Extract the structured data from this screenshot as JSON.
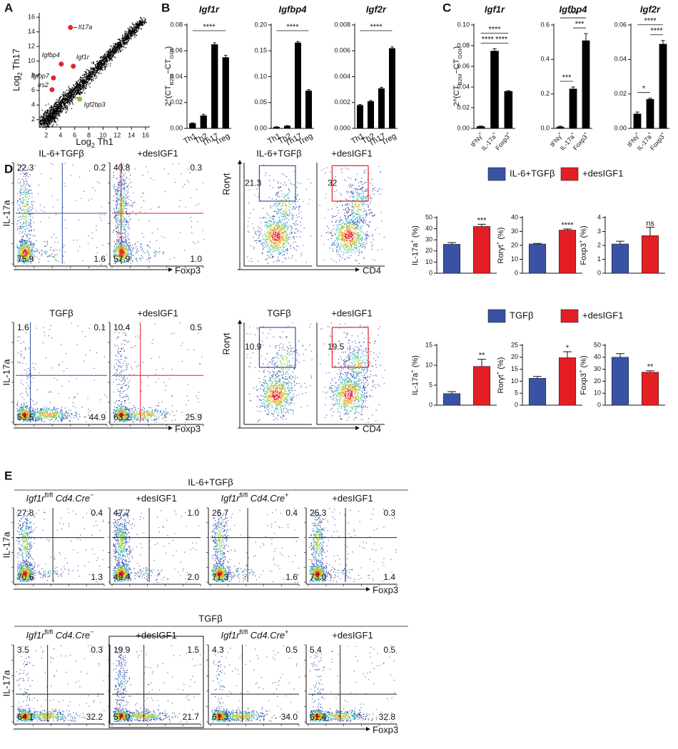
{
  "panel_labels": {
    "A": "A",
    "B": "B",
    "C": "C",
    "D": "D",
    "E": "E"
  },
  "A": {
    "xlabel": [
      "Log",
      "2",
      " Th1"
    ],
    "ylabel": [
      "Log",
      "2",
      " Th17"
    ],
    "xlim": [
      1,
      16.6
    ],
    "ylim": [
      1,
      16.6
    ],
    "xticks": [
      2,
      4,
      6,
      8,
      10,
      12,
      14,
      16
    ],
    "yticks": [
      2,
      4,
      6,
      8,
      10,
      12,
      14,
      16
    ],
    "genes": [
      {
        "name": "Il17a",
        "x": 5.4,
        "y": 14.6,
        "color": "#e3262b"
      },
      {
        "name": "Igfbp4",
        "x": 4.1,
        "y": 9.6,
        "color": "#e3262b"
      },
      {
        "name": "Igf1r",
        "x": 5.8,
        "y": 9.3,
        "color": "#e3262b"
      },
      {
        "name": "Igfbp7",
        "x": 3.0,
        "y": 7.7,
        "color": "#e3262b"
      },
      {
        "name": "Irs2",
        "x": 2.8,
        "y": 6.1,
        "color": "#e3262b"
      },
      {
        "name": "Igf2bp3",
        "x": 6.7,
        "y": 4.8,
        "color": "#7ac143"
      }
    ]
  },
  "B": {
    "ylabel": [
      "2^(CT",
      "B2M",
      "−CT",
      "GOI",
      ")"
    ],
    "charts": [
      {
        "title": "Igf1r",
        "categories": [
          "Th1",
          "Th2",
          "Th17",
          "Treg"
        ],
        "values": [
          0.004,
          0.01,
          0.065,
          0.055
        ],
        "errors": [
          0.0003,
          0.0009,
          0.0012,
          0.0015
        ],
        "ylim": [
          0,
          0.08
        ],
        "yticks": [
          {
            "value": 0,
            "label": "0.00"
          },
          0.02,
          0.04,
          0.06,
          0.08
        ],
        "significance": [
          "****"
        ]
      },
      {
        "title": "Igfbp4",
        "categories": [
          "Th1",
          "Th2",
          "Th17",
          "Treg"
        ],
        "values": [
          0.003,
          0.005,
          0.166,
          0.073
        ],
        "errors": [
          0.0003,
          0.0004,
          0.002,
          0.002
        ],
        "ylim": [
          0,
          0.2
        ],
        "yticks": [
          {
            "value": 0,
            "label": "0.00"
          },
          0.05,
          {
            "value": 0.1,
            "label": "0.10"
          },
          0.15,
          {
            "value": 0.2,
            "label": "0.20"
          }
        ],
        "significance": [
          "****"
        ]
      },
      {
        "title": "Igf2r",
        "categories": [
          "Th1",
          "Th2",
          "Th17",
          "Treg"
        ],
        "values": [
          0.0018,
          0.0021,
          0.0031,
          0.0062
        ],
        "errors": [
          5e-05,
          6e-05,
          8e-05,
          0.0001
        ],
        "ylim": [
          0,
          0.008
        ],
        "yticks": [
          {
            "value": 0,
            "label": "0.000"
          },
          0.002,
          0.004,
          0.006,
          0.008
        ],
        "significance": [
          "****"
        ]
      }
    ]
  },
  "C": {
    "ylabel": [
      "2^(CT",
      "B2M",
      "−CT",
      "GOI",
      ")"
    ],
    "charts": [
      {
        "title": "Igf1r",
        "categories": [
          [
            "IFNγ",
            "+"
          ],
          [
            "IL-17a",
            "+"
          ],
          [
            "Foxp3",
            "+"
          ]
        ],
        "values": [
          0.002,
          0.075,
          0.036
        ],
        "errors": [
          0.0003,
          0.002,
          0.0005
        ],
        "ylim": [
          0,
          0.1
        ],
        "yticks": [
          {
            "value": 0,
            "label": "0.00"
          },
          0.02,
          0.04,
          0.06,
          0.08,
          {
            "value": 0.1,
            "label": "0.10"
          }
        ],
        "significance": [
          "****",
          "****",
          "****"
        ]
      },
      {
        "title": "Igfbp4",
        "categories": [
          [
            "IFNγ",
            "+"
          ],
          [
            "IL-17a",
            "+"
          ],
          [
            "Foxp3",
            "+"
          ]
        ],
        "values": [
          0.01,
          0.23,
          0.51
        ],
        "errors": [
          0.003,
          0.01,
          0.04
        ],
        "ylim": [
          0,
          0.6
        ],
        "yticks": [
          {
            "value": 0,
            "label": "0.0"
          },
          0.2,
          0.4,
          0.6
        ],
        "significance": [
          "***",
          "***",
          "***"
        ]
      },
      {
        "title": "Igf2r",
        "categories": [
          [
            "IFNγ",
            "+"
          ],
          [
            "IL-17a",
            "+"
          ],
          [
            "Foxp3",
            "+"
          ]
        ],
        "values": [
          0.0085,
          0.017,
          0.049
        ],
        "errors": [
          0.001,
          0.0005,
          0.002
        ],
        "ylim": [
          0,
          0.06
        ],
        "yticks": [
          {
            "value": 0,
            "label": "0.00"
          },
          0.02,
          0.04,
          0.06
        ],
        "significance": [
          "****",
          "*",
          "****"
        ]
      }
    ]
  },
  "D": {
    "flow_y": "IL-17a",
    "flow_x": "Foxp3",
    "gate_y": "Rorγt",
    "gate_x": "CD4",
    "rows": [
      {
        "titles": [
          "IL-6+TGFβ",
          "+desIGF1",
          "IL-6+TGFβ",
          "+desIGF1"
        ],
        "quadrants": [
          [
            "22.3",
            "0.2",
            "75.9",
            "1.6"
          ],
          [
            "40.8",
            "0.3",
            "57.9",
            "1.0"
          ]
        ],
        "gates": [
          "21.3",
          "32"
        ],
        "legend": [
          {
            "name": "IL-6+TGFβ",
            "color": "#3953a4"
          },
          {
            "name": "+desIGF1",
            "color": "#e31e24"
          }
        ],
        "bars": [
          {
            "ylabel": [
              "IL-17a",
              "+",
              " (%)"
            ],
            "values": [
              26,
              42
            ],
            "errors": [
              1.5,
              2
            ],
            "ylim": [
              0,
              50
            ],
            "yticks": [
              0,
              10,
              20,
              30,
              40,
              50
            ],
            "significance": "***"
          },
          {
            "ylabel": [
              "Rorγt",
              "+",
              " (%)"
            ],
            "values": [
              21,
              31
            ],
            "errors": [
              0.4,
              0.8
            ],
            "ylim": [
              0,
              40
            ],
            "yticks": [
              0,
              10,
              20,
              30,
              40
            ],
            "significance": "****"
          },
          {
            "ylabel": [
              "Foxp3",
              "+",
              " (%)"
            ],
            "values": [
              2.1,
              2.7
            ],
            "errors": [
              0.2,
              0.6
            ],
            "ylim": [
              0,
              4
            ],
            "yticks": [
              0,
              1,
              2,
              3,
              4
            ],
            "significance": "ns"
          }
        ]
      },
      {
        "titles": [
          "TGFβ",
          "+desIGF1",
          "TGFβ",
          "+desIGF1"
        ],
        "quadrants": [
          [
            "1.6",
            "0.1",
            "53.5",
            "44.9"
          ],
          [
            "10.4",
            "0.5",
            "63.2",
            "25.9"
          ]
        ],
        "gates": [
          "10.9",
          "19.5"
        ],
        "legend": [
          {
            "name": "TGFβ",
            "color": "#3953a4"
          },
          {
            "name": "+desIGF1",
            "color": "#e31e24"
          }
        ],
        "bars": [
          {
            "ylabel": [
              "IL-17a",
              "+",
              " (%)"
            ],
            "values": [
              2.9,
              9.7
            ],
            "errors": [
              0.5,
              1.8
            ],
            "ylim": [
              0,
              15
            ],
            "yticks": [
              0,
              5,
              10,
              15
            ],
            "significance": "**"
          },
          {
            "ylabel": [
              "Rorγt",
              "+",
              " (%)"
            ],
            "values": [
              11.2,
              19.8
            ],
            "errors": [
              0.8,
              2.5
            ],
            "ylim": [
              0,
              25
            ],
            "yticks": [
              0,
              5,
              10,
              15,
              20,
              25
            ],
            "significance": "*"
          },
          {
            "ylabel": [
              "Foxp3",
              "+",
              " (%)"
            ],
            "values": [
              40,
              27.5
            ],
            "errors": [
              3,
              1.2
            ],
            "ylim": [
              0,
              50
            ],
            "yticks": [
              0,
              10,
              20,
              30,
              40,
              50
            ],
            "significance": "**"
          }
        ]
      }
    ]
  },
  "E": {
    "flow_y": "IL-17a",
    "flow_x": "Foxp3",
    "rows": [
      {
        "condition": "IL-6+TGFβ",
        "titles": [
          [
            "Igf1r",
            "fl/fl",
            " Cd4.Cre",
            "−"
          ],
          [
            "+desIGF1"
          ],
          [
            "Igf1r",
            "fl/fl",
            " Cd4.Cre",
            "+"
          ],
          [
            "+desIGF1"
          ]
        ],
        "quadrants": [
          [
            "27.8",
            "0.4",
            "70.6",
            "1.3"
          ],
          [
            "47.7",
            "1.0",
            "49.4",
            "2.0"
          ],
          [
            "26.7",
            "0.4",
            "71.3",
            "1.6"
          ],
          [
            "25.3",
            "0.3",
            "73.0",
            "1.4"
          ]
        ]
      },
      {
        "condition": "TGFβ",
        "titles": [
          [
            "Igf1r",
            "fl/fl",
            " Cd4.Cre",
            "−"
          ],
          [
            "+desIGF1"
          ],
          [
            "Igf1r",
            "fl/fl",
            " Cd4.Cre",
            "+"
          ],
          [
            "+desIGF1"
          ]
        ],
        "quadrants": [
          [
            "3.5",
            "0.3",
            "64.1",
            "32.2"
          ],
          [
            "19.9",
            "1.5",
            "57.0",
            "21.7"
          ],
          [
            "4.3",
            "0.5",
            "61.3",
            "34.0"
          ],
          [
            "5.4",
            "0.5",
            "61.4",
            "32.8"
          ]
        ]
      }
    ]
  }
}
